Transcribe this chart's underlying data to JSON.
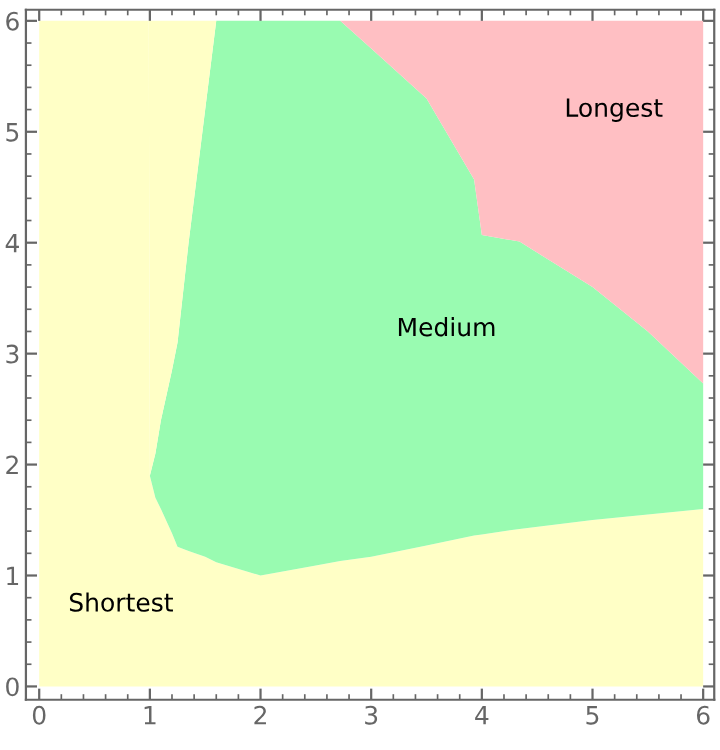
{
  "chart_data": {
    "type": "area",
    "stacked": true,
    "x": [
      0,
      0.99,
      1.0,
      1.05,
      1.1,
      1.2,
      1.25,
      1.35,
      1.5,
      1.6,
      2,
      2.5,
      2.72,
      3,
      3.5,
      3.93,
      4.0,
      4.34,
      5,
      5.5,
      6
    ],
    "series": [
      {
        "color": "#ffffc6",
        "values": [
          6,
          6,
          1.9,
          1.7,
          1.6,
          1.38,
          1.26,
          1.22,
          1.17,
          1.12,
          1.0,
          1.09,
          1.13,
          1.17,
          1.27,
          1.36,
          1.37,
          1.42,
          1.5,
          1.55,
          1.6
        ]
      },
      {
        "color": "#99fbb1",
        "values": [
          0,
          0,
          0,
          0.4,
          0.8,
          1.47,
          1.84,
          2.78,
          4.03,
          4.88,
          5.0,
          4.91,
          4.87,
          4.58,
          4.03,
          3.21,
          2.7,
          2.59,
          2.1,
          1.65,
          1.13
        ]
      },
      {
        "color": "#ffffc6",
        "values": [
          0,
          0,
          4.1,
          3.9,
          3.6,
          3.15,
          2.9,
          2.0,
          0.8,
          0,
          0,
          0,
          0,
          0,
          0,
          0,
          0,
          0,
          0,
          0,
          0
        ]
      },
      {
        "color": "#ffbfc3",
        "values": [
          0,
          0,
          0,
          0,
          0,
          0,
          0,
          0,
          0,
          0,
          0,
          0,
          0,
          0.25,
          0.7,
          1.43,
          1.93,
          1.99,
          2.4,
          2.8,
          3.27
        ]
      }
    ],
    "xlim": [
      -0.12,
      6.1
    ],
    "ylim": [
      -0.12,
      6.1
    ],
    "xticks": [
      0,
      1,
      2,
      3,
      4,
      5,
      6
    ],
    "yticks": [
      0,
      1,
      2,
      3,
      4,
      5,
      6
    ],
    "grid": false,
    "legend": false,
    "annotations": [
      "Shortest",
      "Medium",
      "Longest"
    ]
  }
}
